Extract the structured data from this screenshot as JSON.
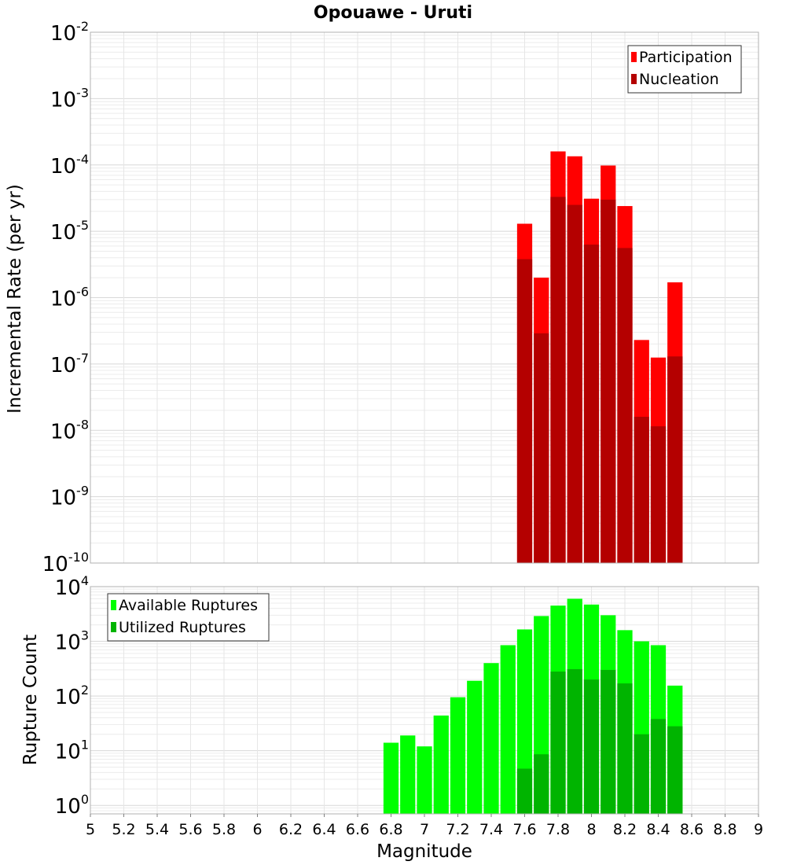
{
  "chart_data": [
    {
      "type": "bar",
      "panel": "top",
      "title": "Opouawe - Uruti",
      "xlabel": "",
      "ylabel": "Incremental Rate (per yr)",
      "yscale": "log",
      "ylim": [
        1e-10,
        0.01
      ],
      "xlim": [
        5,
        9
      ],
      "yticks": [
        {
          "base": "10",
          "exp": "-10"
        },
        {
          "base": "10",
          "exp": "-9"
        },
        {
          "base": "10",
          "exp": "-8"
        },
        {
          "base": "10",
          "exp": "-7"
        },
        {
          "base": "10",
          "exp": "-6"
        },
        {
          "base": "10",
          "exp": "-5"
        },
        {
          "base": "10",
          "exp": "-4"
        },
        {
          "base": "10",
          "exp": "-3"
        },
        {
          "base": "10",
          "exp": "-2"
        }
      ],
      "legend": "top-right",
      "x": [
        7.6,
        7.7,
        7.8,
        7.9,
        8.0,
        8.1,
        8.2,
        8.3,
        8.4,
        8.5
      ],
      "series": [
        {
          "name": "Participation",
          "color": "#ff0000",
          "values": [
            1.3e-05,
            2e-06,
            0.00016,
            0.000135,
            3.1e-05,
            9.8e-05,
            2.4e-05,
            2.3e-07,
            1.25e-07,
            1.7e-06
          ]
        },
        {
          "name": "Nucleation",
          "color": "#b40000",
          "values": [
            3.8e-06,
            2.9e-07,
            3.3e-05,
            2.5e-05,
            6.3e-06,
            3e-05,
            5.6e-06,
            1.6e-08,
            1.15e-08,
            1.3e-07
          ]
        }
      ],
      "grid": true
    },
    {
      "type": "bar",
      "panel": "bottom",
      "title": "",
      "xlabel": "Magnitude",
      "ylabel": "Rupture Count",
      "yscale": "log",
      "ylim": [
        0.7,
        10000
      ],
      "xlim": [
        5,
        9
      ],
      "yticks": [
        {
          "base": "10",
          "exp": "0"
        },
        {
          "base": "10",
          "exp": "1"
        },
        {
          "base": "10",
          "exp": "2"
        },
        {
          "base": "10",
          "exp": "3"
        },
        {
          "base": "10",
          "exp": "4"
        }
      ],
      "xticks": [
        "5",
        "5.2",
        "5.4",
        "5.6",
        "5.8",
        "6",
        "6.2",
        "6.4",
        "6.6",
        "6.8",
        "7",
        "7.2",
        "7.4",
        "7.6",
        "7.8",
        "8",
        "8.2",
        "8.4",
        "8.6",
        "8.8",
        "9"
      ],
      "legend": "top-left",
      "series": [
        {
          "name": "Available Ruptures",
          "color": "#00ff00",
          "x": [
            6.8,
            6.9,
            7.0,
            7.1,
            7.2,
            7.3,
            7.4,
            7.5,
            7.6,
            7.7,
            7.8,
            7.9,
            8.0,
            8.1,
            8.2,
            8.3,
            8.4,
            8.5
          ],
          "values": [
            14,
            19,
            12,
            44,
            95,
            190,
            400,
            850,
            1650,
            2900,
            4500,
            6000,
            4700,
            3000,
            1600,
            1000,
            850,
            155
          ]
        },
        {
          "name": "Utilized Ruptures",
          "color": "#00b400",
          "x": [
            7.6,
            7.7,
            7.8,
            7.9,
            8.0,
            8.1,
            8.2,
            8.3,
            8.4,
            8.5
          ],
          "values": [
            4.7,
            8.6,
            280,
            310,
            200,
            300,
            170,
            20,
            38,
            28
          ]
        }
      ],
      "grid": true
    }
  ]
}
